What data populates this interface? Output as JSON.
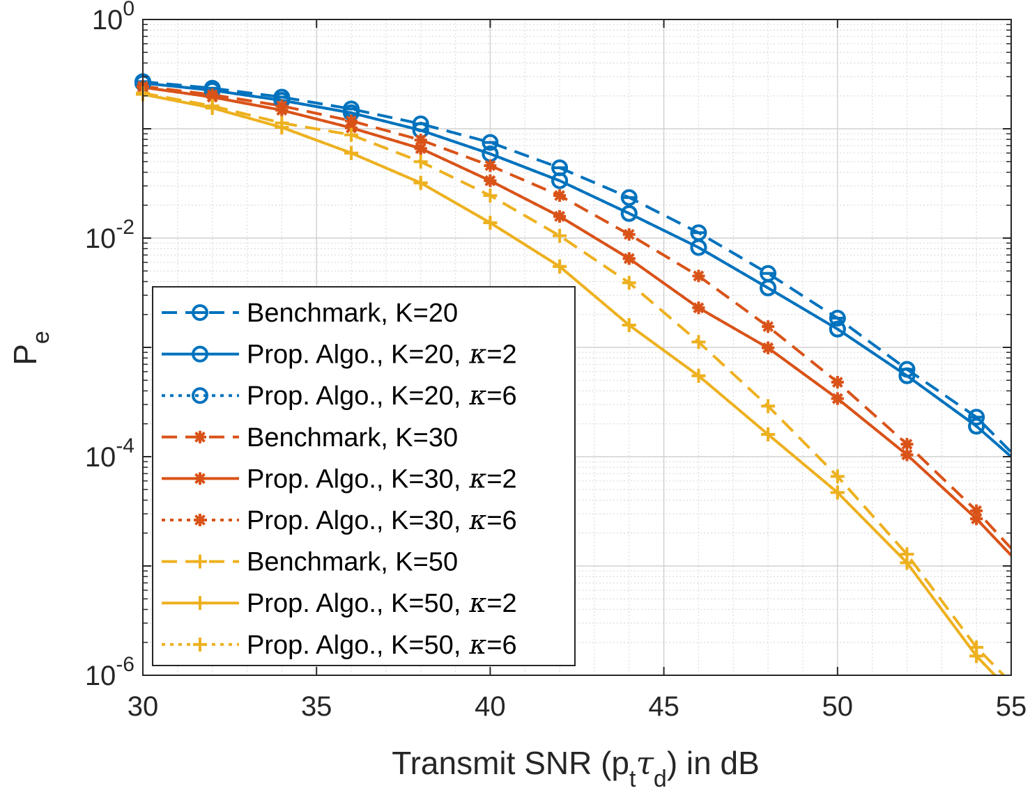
{
  "chart_data": {
    "type": "line",
    "title": "",
    "xlabel": "Transmit SNR (p",
    "xlabel_sub1": "t",
    "xlabel_greek": "τ",
    "xlabel_sub2": "d",
    "xlabel_end": ") in dB",
    "ylabel": "P",
    "ylabel_sub": "e",
    "yscale": "log",
    "xlim": [
      30,
      55
    ],
    "ylim": [
      1e-06,
      1
    ],
    "grid": true,
    "xticks": [
      30,
      35,
      40,
      45,
      50,
      55
    ],
    "xtick_labels": [
      "30",
      "35",
      "40",
      "45",
      "50",
      "55"
    ],
    "yticks": [
      {
        "base": "10",
        "exp": "0",
        "value": 1
      },
      {
        "base": "10",
        "exp": "-2",
        "value": 0.01
      },
      {
        "base": "10",
        "exp": "-4",
        "value": 0.0001
      },
      {
        "base": "10",
        "exp": "-6",
        "value": 1e-06
      }
    ],
    "legend_position": "lower-left",
    "x": [
      30,
      32,
      34,
      36,
      38,
      40,
      42,
      44,
      46,
      48,
      50,
      52,
      54,
      55
    ],
    "series": [
      {
        "name": "Benchmark, K=20",
        "kappa": "",
        "color": "#0072BD",
        "dash": "dashed",
        "marker": "circle-bar",
        "values": [
          0.27,
          0.235,
          0.195,
          0.152,
          0.111,
          0.075,
          0.044,
          0.0235,
          0.0112,
          0.00475,
          0.00185,
          0.00063,
          0.00023,
          0.00011
        ]
      },
      {
        "name": "Prop. Algo., K=20,",
        "kappa": "κ=2",
        "color": "#0072BD",
        "dash": "solid",
        "marker": "circle",
        "values": [
          0.262,
          0.225,
          0.182,
          0.14,
          0.097,
          0.059,
          0.0335,
          0.0168,
          0.0082,
          0.0035,
          0.00147,
          0.00055,
          0.00019,
          0.0001
        ]
      },
      {
        "name": "Prop. Algo., K=20,",
        "kappa": "κ=6",
        "color": "#0072BD",
        "dash": "dotted",
        "marker": "circle",
        "values": [
          0.262,
          0.225,
          0.182,
          0.14,
          0.097,
          0.059,
          0.0335,
          0.0168,
          0.0082,
          0.0035,
          0.00147,
          0.00055,
          0.00019,
          0.0001
        ]
      },
      {
        "name": "Benchmark, K=30",
        "kappa": "",
        "color": "#D95319",
        "dash": "dashed",
        "marker": "asterisk",
        "values": [
          0.245,
          0.205,
          0.162,
          0.118,
          0.079,
          0.046,
          0.0245,
          0.0108,
          0.0045,
          0.00155,
          0.00048,
          0.00013,
          3.2e-05,
          1.45e-05
        ]
      },
      {
        "name": "Prop. Algo., K=30,",
        "kappa": "κ=2",
        "color": "#D95319",
        "dash": "solid",
        "marker": "asterisk",
        "values": [
          0.24,
          0.195,
          0.148,
          0.102,
          0.066,
          0.0335,
          0.0158,
          0.0065,
          0.0023,
          0.00099,
          0.00034,
          0.000104,
          2.7e-05,
          1.25e-05
        ]
      },
      {
        "name": "Prop. Algo., K=30,",
        "kappa": "κ=6",
        "color": "#D95319",
        "dash": "dotted",
        "marker": "asterisk",
        "values": [
          0.24,
          0.195,
          0.148,
          0.102,
          0.066,
          0.0335,
          0.0158,
          0.0065,
          0.0023,
          0.00099,
          0.00034,
          0.000104,
          2.7e-05,
          1.25e-05
        ]
      },
      {
        "name": "Benchmark, K=50",
        "kappa": "",
        "color": "#EDB120",
        "dash": "dashed",
        "marker": "plus",
        "values": [
          0.212,
          0.162,
          0.113,
          0.088,
          0.05,
          0.0245,
          0.0105,
          0.0039,
          0.00112,
          0.00029,
          6.6e-05,
          1.28e-05,
          1.8e-06,
          8.5e-07
        ]
      },
      {
        "name": "Prop. Algo., K=50,",
        "kappa": "κ=2",
        "color": "#EDB120",
        "dash": "solid",
        "marker": "plus",
        "values": [
          0.207,
          0.155,
          0.103,
          0.06,
          0.032,
          0.0138,
          0.0055,
          0.0016,
          0.00055,
          0.00016,
          4.7e-05,
          1.07e-05,
          1.5e-06,
          7e-07
        ]
      },
      {
        "name": "Prop. Algo., K=50,",
        "kappa": "κ=6",
        "color": "#EDB120",
        "dash": "dotted",
        "marker": "plus",
        "values": [
          0.207,
          0.155,
          0.103,
          0.06,
          0.032,
          0.0138,
          0.0055,
          0.0016,
          0.00055,
          0.00016,
          4.7e-05,
          1.07e-05,
          1.5e-06,
          7e-07
        ]
      }
    ]
  }
}
